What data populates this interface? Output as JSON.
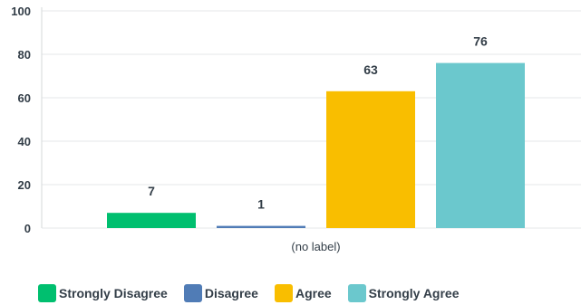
{
  "chart_data": {
    "type": "bar",
    "categories": [
      "(no label)"
    ],
    "xlabel": "",
    "ylabel": "",
    "ylim": [
      0,
      100
    ],
    "yticks": [
      0,
      20,
      40,
      60,
      80,
      100
    ],
    "grid": true,
    "legend_position": "bottom-left",
    "series": [
      {
        "name": "Strongly Disagree",
        "values": [
          7
        ],
        "color": "#00bf6f"
      },
      {
        "name": "Disagree",
        "values": [
          1
        ],
        "color": "#507cb6"
      },
      {
        "name": "Agree",
        "values": [
          63
        ],
        "color": "#f9be00"
      },
      {
        "name": "Strongly Agree",
        "values": [
          76
        ],
        "color": "#6bc8cd"
      }
    ]
  }
}
